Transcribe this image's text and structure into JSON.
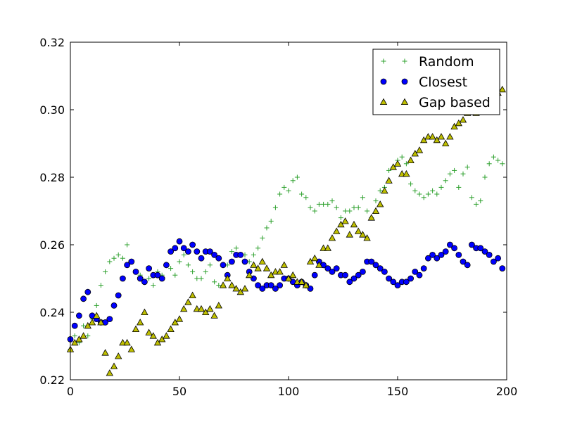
{
  "chart_data": {
    "type": "scatter",
    "title": "",
    "xlabel": "",
    "ylabel": "",
    "xlim": [
      0,
      200
    ],
    "ylim": [
      0.22,
      0.32
    ],
    "xticks": [
      0,
      50,
      100,
      150,
      200
    ],
    "xtick_labels": [
      "0",
      "50",
      "100",
      "150",
      "200"
    ],
    "yticks": [
      0.22,
      0.24,
      0.26,
      0.28,
      0.3,
      0.32
    ],
    "ytick_labels": [
      "0.22",
      "0.24",
      "0.26",
      "0.28",
      "0.30",
      "0.32"
    ],
    "grid": false,
    "legend_position": "top-right",
    "series": [
      {
        "name": "Random",
        "marker": "plus",
        "color": "#2ca02c",
        "x": [
          0,
          2,
          4,
          6,
          8,
          10,
          12,
          14,
          16,
          18,
          20,
          22,
          24,
          26,
          28,
          30,
          32,
          34,
          36,
          38,
          40,
          42,
          44,
          46,
          48,
          50,
          52,
          54,
          56,
          58,
          60,
          62,
          64,
          66,
          68,
          70,
          72,
          74,
          76,
          78,
          80,
          82,
          84,
          86,
          88,
          90,
          92,
          94,
          96,
          98,
          100,
          102,
          104,
          106,
          108,
          110,
          112,
          114,
          116,
          118,
          120,
          122,
          124,
          126,
          128,
          130,
          132,
          134,
          136,
          138,
          140,
          142,
          144,
          146,
          148,
          150,
          152,
          154,
          156,
          158,
          160,
          162,
          164,
          166,
          168,
          170,
          172,
          174,
          176,
          178,
          180,
          182,
          184,
          186,
          188,
          190,
          192,
          194,
          196,
          198
        ],
        "y": [
          0.229,
          0.233,
          0.231,
          0.236,
          0.233,
          0.238,
          0.242,
          0.248,
          0.252,
          0.255,
          0.256,
          0.257,
          0.256,
          0.26,
          0.255,
          0.252,
          0.251,
          0.249,
          0.25,
          0.248,
          0.252,
          0.251,
          0.254,
          0.253,
          0.251,
          0.255,
          0.257,
          0.254,
          0.252,
          0.25,
          0.25,
          0.252,
          0.254,
          0.249,
          0.248,
          0.248,
          0.254,
          0.258,
          0.259,
          0.257,
          0.257,
          0.255,
          0.257,
          0.259,
          0.262,
          0.265,
          0.267,
          0.271,
          0.275,
          0.277,
          0.276,
          0.279,
          0.28,
          0.275,
          0.274,
          0.271,
          0.27,
          0.272,
          0.272,
          0.272,
          0.273,
          0.271,
          0.268,
          0.27,
          0.27,
          0.271,
          0.271,
          0.274,
          0.27,
          0.268,
          0.273,
          0.276,
          0.277,
          0.282,
          0.283,
          0.285,
          0.286,
          0.284,
          0.278,
          0.276,
          0.275,
          0.274,
          0.275,
          0.276,
          0.275,
          0.277,
          0.279,
          0.281,
          0.282,
          0.277,
          0.281,
          0.283,
          0.274,
          0.272,
          0.273,
          0.28,
          0.284,
          0.286,
          0.285,
          0.284
        ]
      },
      {
        "name": "Closest",
        "marker": "circle",
        "color": "#0000ff",
        "x": [
          0,
          2,
          4,
          6,
          8,
          10,
          12,
          14,
          16,
          18,
          20,
          22,
          24,
          26,
          28,
          30,
          32,
          34,
          36,
          38,
          40,
          42,
          44,
          46,
          48,
          50,
          52,
          54,
          56,
          58,
          60,
          62,
          64,
          66,
          68,
          70,
          72,
          74,
          76,
          78,
          80,
          82,
          84,
          86,
          88,
          90,
          92,
          94,
          96,
          98,
          100,
          102,
          104,
          106,
          108,
          110,
          112,
          114,
          116,
          118,
          120,
          122,
          124,
          126,
          128,
          130,
          132,
          134,
          136,
          138,
          140,
          142,
          144,
          146,
          148,
          150,
          152,
          154,
          156,
          158,
          160,
          162,
          164,
          166,
          168,
          170,
          172,
          174,
          176,
          178,
          180,
          182,
          184,
          186,
          188,
          190,
          192,
          194,
          196,
          198
        ],
        "y": [
          0.232,
          0.236,
          0.239,
          0.244,
          0.246,
          0.239,
          0.238,
          0.237,
          0.237,
          0.238,
          0.242,
          0.245,
          0.25,
          0.254,
          0.255,
          0.252,
          0.25,
          0.249,
          0.253,
          0.251,
          0.251,
          0.25,
          0.254,
          0.258,
          0.259,
          0.261,
          0.259,
          0.258,
          0.26,
          0.258,
          0.256,
          0.258,
          0.258,
          0.257,
          0.256,
          0.254,
          0.251,
          0.255,
          0.257,
          0.257,
          0.255,
          0.252,
          0.25,
          0.248,
          0.247,
          0.248,
          0.248,
          0.247,
          0.248,
          0.25,
          0.25,
          0.249,
          0.248,
          0.249,
          0.248,
          0.247,
          0.251,
          0.255,
          0.254,
          0.253,
          0.252,
          0.253,
          0.251,
          0.251,
          0.249,
          0.25,
          0.251,
          0.252,
          0.255,
          0.255,
          0.254,
          0.253,
          0.252,
          0.25,
          0.249,
          0.248,
          0.249,
          0.249,
          0.25,
          0.252,
          0.251,
          0.253,
          0.256,
          0.257,
          0.256,
          0.257,
          0.258,
          0.26,
          0.259,
          0.257,
          0.255,
          0.254,
          0.26,
          0.259,
          0.259,
          0.258,
          0.257,
          0.255,
          0.256,
          0.253
        ]
      },
      {
        "name": "Gap based",
        "marker": "triangle",
        "color": "#bfbf00",
        "x": [
          0,
          2,
          4,
          6,
          8,
          10,
          12,
          14,
          16,
          18,
          20,
          22,
          24,
          26,
          28,
          30,
          32,
          34,
          36,
          38,
          40,
          42,
          44,
          46,
          48,
          50,
          52,
          54,
          56,
          58,
          60,
          62,
          64,
          66,
          68,
          70,
          72,
          74,
          76,
          78,
          80,
          82,
          84,
          86,
          88,
          90,
          92,
          94,
          96,
          98,
          100,
          102,
          104,
          106,
          108,
          110,
          112,
          114,
          116,
          118,
          120,
          122,
          124,
          126,
          128,
          130,
          132,
          134,
          136,
          138,
          140,
          142,
          144,
          146,
          148,
          150,
          152,
          154,
          156,
          158,
          160,
          162,
          164,
          166,
          168,
          170,
          172,
          174,
          176,
          178,
          180,
          182,
          184,
          186,
          188,
          190,
          192,
          194,
          196,
          198
        ],
        "y": [
          0.229,
          0.231,
          0.232,
          0.233,
          0.236,
          0.237,
          0.239,
          0.237,
          0.228,
          0.222,
          0.224,
          0.227,
          0.231,
          0.231,
          0.229,
          0.235,
          0.237,
          0.24,
          0.234,
          0.233,
          0.231,
          0.232,
          0.233,
          0.235,
          0.237,
          0.238,
          0.241,
          0.243,
          0.245,
          0.241,
          0.241,
          0.24,
          0.241,
          0.239,
          0.242,
          0.248,
          0.25,
          0.248,
          0.247,
          0.246,
          0.247,
          0.251,
          0.254,
          0.253,
          0.255,
          0.253,
          0.251,
          0.252,
          0.252,
          0.254,
          0.25,
          0.251,
          0.249,
          0.249,
          0.248,
          0.255,
          0.256,
          0.254,
          0.259,
          0.259,
          0.262,
          0.264,
          0.266,
          0.267,
          0.263,
          0.266,
          0.264,
          0.263,
          0.262,
          0.268,
          0.27,
          0.272,
          0.276,
          0.279,
          0.283,
          0.284,
          0.281,
          0.281,
          0.285,
          0.287,
          0.288,
          0.291,
          0.292,
          0.292,
          0.291,
          0.292,
          0.29,
          0.292,
          0.295,
          0.296,
          0.297,
          0.299,
          0.3,
          0.299,
          0.301,
          0.302,
          0.303,
          0.304,
          0.305,
          0.306
        ]
      }
    ]
  }
}
